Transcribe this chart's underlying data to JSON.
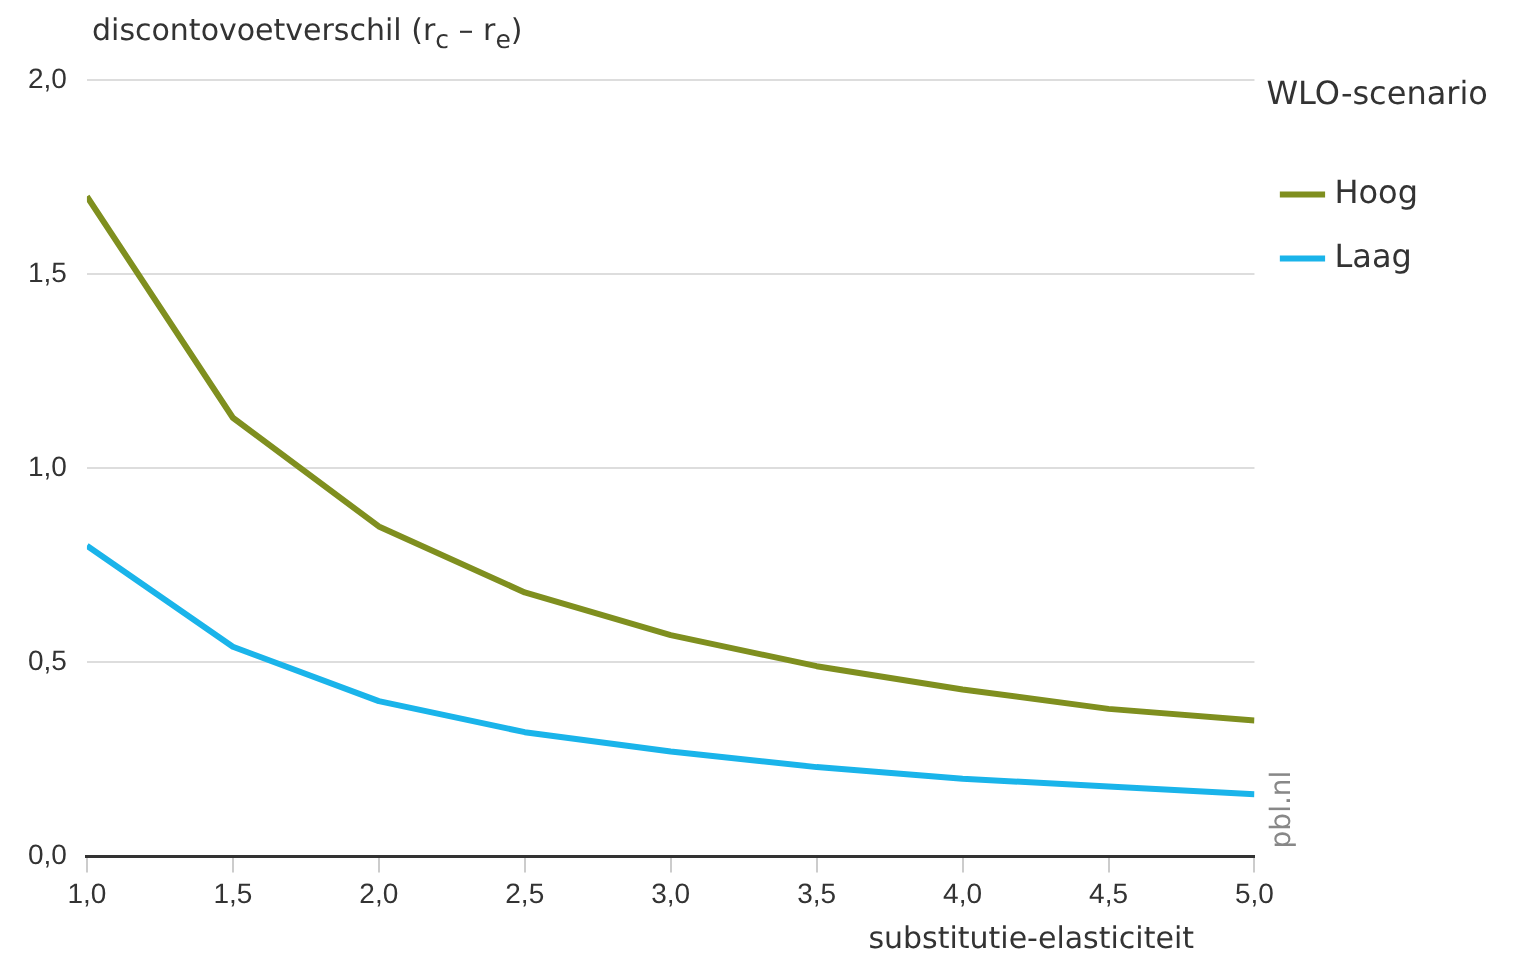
{
  "chart_data": {
    "type": "line",
    "ylabel": "discontovoetverschil (r$_{c}$ – r$_{e}$)",
    "xlabel": "substitutie-elasticiteit",
    "legend_title": "WLO-scenario",
    "x": [
      1.0,
      1.5,
      2.0,
      2.5,
      3.0,
      3.5,
      4.0,
      4.5,
      5.0
    ],
    "series": [
      {
        "name": "Hoog",
        "color": "#7f8f1f",
        "values": [
          1.7,
          1.13,
          0.85,
          0.68,
          0.57,
          0.49,
          0.43,
          0.38,
          0.35
        ]
      },
      {
        "name": "Laag",
        "color": "#1ab4ea",
        "values": [
          0.8,
          0.54,
          0.4,
          0.32,
          0.27,
          0.23,
          0.2,
          0.18,
          0.16
        ]
      }
    ],
    "xlim": [
      1,
      5
    ],
    "xticks": [
      {
        "value": 1,
        "label": "1,0"
      },
      {
        "value": 1.5,
        "label": "1,5"
      },
      {
        "value": 2,
        "label": "2,0"
      },
      {
        "value": 2.5,
        "label": "2,5"
      },
      {
        "value": 3,
        "label": "3,0"
      },
      {
        "value": 3.5,
        "label": "3,5"
      },
      {
        "value": 4,
        "label": "4,0"
      },
      {
        "value": 4.5,
        "label": "4,5"
      },
      {
        "value": 5,
        "label": "5,0"
      }
    ],
    "ylim": [
      0,
      2
    ],
    "yticks": [
      {
        "value": 0,
        "label": "0,0"
      },
      {
        "value": 0.5,
        "label": "0,5"
      },
      {
        "value": 1,
        "label": "1,0"
      },
      {
        "value": 1.5,
        "label": "1,5"
      },
      {
        "value": 2,
        "label": "2,0"
      }
    ],
    "grid": "y",
    "legend": "top right",
    "marker": "none",
    "line_style": "solid",
    "annotations": [
      "pbl.nl"
    ]
  }
}
